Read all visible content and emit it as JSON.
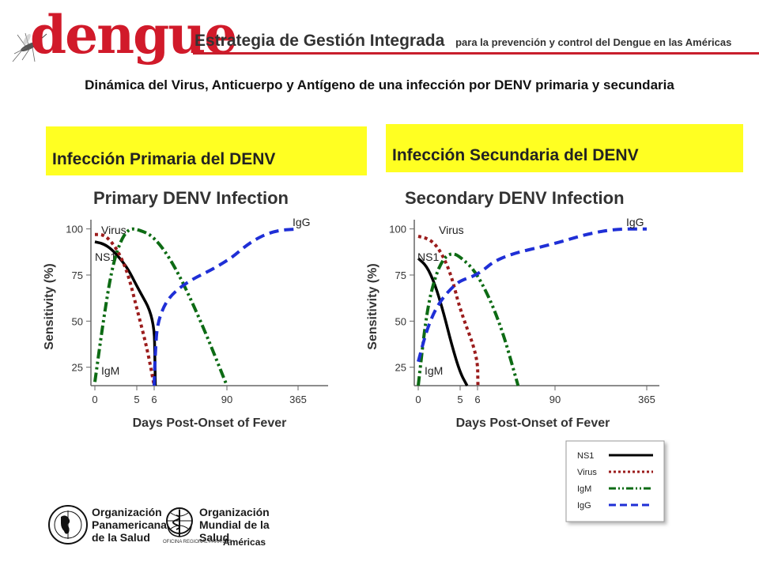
{
  "header": {
    "logo_text": "dengue",
    "title": "Estrategia de Gestión Integrada",
    "subtitle": "para la prevención y control del Dengue en las Américas"
  },
  "slide_title": "Dinámica del Virus, Anticuerpo y Antígeno de una infección por DENV primaria y secundaria",
  "labels": {
    "primary_box": "Infección Primaria del DENV",
    "secondary_box": "Infección Secundaria del DENV"
  },
  "footer": {
    "ops_line1": "Organización",
    "ops_line2": "Panamericana",
    "ops_line3": "de la Salud",
    "oms_line1": "Organización",
    "oms_line2": "Mundial de la Salud",
    "oms_sub": "OFICINA REGIONAL PARA LAS",
    "oms_region": "Américas"
  },
  "colors": {
    "NS1": "#000000",
    "Virus": "#9b1c1c",
    "IgM": "#0d6b14",
    "IgG": "#1f2fd6",
    "highlight": "#ffff22",
    "brand": "#d11a2a"
  },
  "chart_data": [
    {
      "type": "line",
      "title": "Primary DENV Infection",
      "xlabel": "Days Post-Onset of Fever",
      "ylabel": "Sensitivity (%)",
      "x_ticks": [
        "0",
        "5",
        "6",
        "90",
        "365"
      ],
      "y_ticks": [
        25,
        50,
        75,
        100
      ],
      "ylim": [
        15,
        105
      ],
      "x_axis": "non-linear day scale (0, 5, 6, 90, 365)",
      "series": [
        {
          "name": "NS1",
          "style": "solid",
          "label": "NS1",
          "points": [
            [
              0,
              93
            ],
            [
              1,
              92
            ],
            [
              2,
              89
            ],
            [
              3,
              84
            ],
            [
              4,
              78
            ],
            [
              5,
              69
            ],
            [
              6,
              52
            ],
            [
              7,
              25
            ],
            [
              7.4,
              15
            ]
          ]
        },
        {
          "name": "Virus",
          "style": "dotted",
          "label": "Virus",
          "points": [
            [
              0,
              97
            ],
            [
              1,
              97
            ],
            [
              2,
              93
            ],
            [
              3,
              86
            ],
            [
              4,
              75
            ],
            [
              5,
              57
            ],
            [
              5.6,
              35
            ],
            [
              6,
              15
            ]
          ]
        },
        {
          "name": "IgM",
          "style": "dash-dot-dot",
          "label": "IgM",
          "points": [
            [
              0,
              17
            ],
            [
              1,
              50
            ],
            [
              2,
              78
            ],
            [
              3,
              93
            ],
            [
              4,
              100
            ],
            [
              5,
              100
            ],
            [
              6,
              96
            ],
            [
              30,
              80
            ],
            [
              60,
              50
            ],
            [
              90,
              15
            ]
          ]
        },
        {
          "name": "IgG",
          "style": "dashed",
          "label": "IgG",
          "points": [
            [
              6,
              15
            ],
            [
              7,
              30
            ],
            [
              10,
              52
            ],
            [
              30,
              68
            ],
            [
              90,
              82
            ],
            [
              180,
              93
            ],
            [
              270,
              99
            ],
            [
              365,
              100
            ]
          ]
        }
      ]
    },
    {
      "type": "line",
      "title": "Secondary DENV Infection",
      "xlabel": "Days Post-Onset of Fever",
      "ylabel": "Sensitivity (%)",
      "x_ticks": [
        "0",
        "5",
        "6",
        "90",
        "365"
      ],
      "y_ticks": [
        25,
        50,
        75,
        100
      ],
      "ylim": [
        15,
        105
      ],
      "x_axis": "non-linear day scale (0, 5, 6, 90, 365)",
      "series": [
        {
          "name": "NS1",
          "style": "solid",
          "label": "NS1",
          "points": [
            [
              0,
              84
            ],
            [
              1,
              80
            ],
            [
              2,
              70
            ],
            [
              3,
              55
            ],
            [
              4,
              37
            ],
            [
              5,
              22
            ],
            [
              5.4,
              15
            ]
          ]
        },
        {
          "name": "Virus",
          "style": "dotted",
          "label": "Virus",
          "points": [
            [
              0,
              96
            ],
            [
              1,
              95
            ],
            [
              2,
              92
            ],
            [
              3,
              85
            ],
            [
              4,
              74
            ],
            [
              5,
              56
            ],
            [
              6,
              31
            ],
            [
              6.4,
              15
            ]
          ]
        },
        {
          "name": "IgM",
          "style": "dash-dot-dot",
          "label": "IgM",
          "points": [
            [
              0,
              15
            ],
            [
              1,
              55
            ],
            [
              2,
              74
            ],
            [
              3,
              84
            ],
            [
              4,
              87
            ],
            [
              5,
              85
            ],
            [
              6,
              76
            ],
            [
              30,
              50
            ],
            [
              50,
              15
            ]
          ]
        },
        {
          "name": "IgG",
          "style": "dashed",
          "label": "IgG",
          "points": [
            [
              0,
              28
            ],
            [
              1,
              45
            ],
            [
              2,
              56
            ],
            [
              3,
              63
            ],
            [
              4,
              68
            ],
            [
              5,
              72
            ],
            [
              6,
              75
            ],
            [
              30,
              85
            ],
            [
              90,
              92
            ],
            [
              180,
              97
            ],
            [
              270,
              100
            ],
            [
              365,
              100
            ]
          ]
        }
      ]
    }
  ],
  "legend": {
    "entries": [
      {
        "name": "NS1",
        "style": "solid"
      },
      {
        "name": "Virus",
        "style": "dotted"
      },
      {
        "name": "IgM",
        "style": "dash-dot-dot"
      },
      {
        "name": "IgG",
        "style": "dashed"
      }
    ],
    "placement": "bottom-right"
  }
}
